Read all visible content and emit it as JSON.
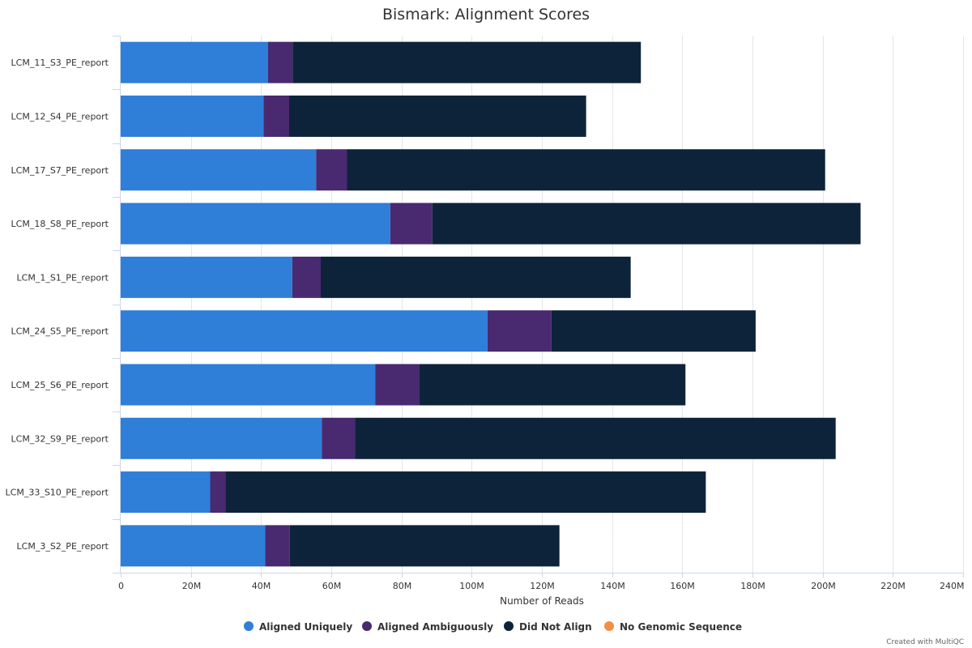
{
  "chart_data": {
    "type": "bar",
    "orientation": "horizontal",
    "stacked": true,
    "title": "Bismark: Alignment Scores",
    "xlabel": "Number of Reads",
    "ylabel": "",
    "xlim": [
      0,
      240000000
    ],
    "x_ticks": [
      "0",
      "20M",
      "40M",
      "60M",
      "80M",
      "100M",
      "120M",
      "140M",
      "160M",
      "180M",
      "200M",
      "220M",
      "240M"
    ],
    "x_tick_values": [
      0,
      20000000,
      40000000,
      60000000,
      80000000,
      100000000,
      120000000,
      140000000,
      160000000,
      180000000,
      200000000,
      220000000,
      240000000
    ],
    "grid": true,
    "legend_position": "bottom",
    "categories": [
      "LCM_11_S3_PE_report",
      "LCM_12_S4_PE_report",
      "LCM_17_S7_PE_report",
      "LCM_18_S8_PE_report",
      "LCM_1_S1_PE_report",
      "LCM_24_S5_PE_report",
      "LCM_25_S6_PE_report",
      "LCM_32_S9_PE_report",
      "LCM_33_S10_PE_report",
      "LCM_3_S2_PE_report"
    ],
    "series": [
      {
        "name": "Aligned Uniquely",
        "color": "#2f7ed8",
        "values": [
          42000000,
          40700000,
          55700000,
          76800000,
          48900000,
          104500000,
          72500000,
          57300000,
          25500000,
          41200000
        ]
      },
      {
        "name": "Aligned Ambiguously",
        "color": "#492970",
        "values": [
          7000000,
          7300000,
          8800000,
          12000000,
          8100000,
          18200000,
          12500000,
          9500000,
          4300000,
          7000000
        ]
      },
      {
        "name": "Did Not Align",
        "color": "#0d233a",
        "values": [
          99200000,
          84600000,
          136200000,
          122000000,
          88300000,
          58200000,
          75900000,
          136900000,
          136900000,
          76800000
        ]
      },
      {
        "name": "No Genomic Sequence",
        "color": "#f28f43",
        "values": [
          0,
          0,
          0,
          0,
          0,
          0,
          0,
          0,
          0,
          0
        ]
      }
    ]
  },
  "credits": "Created with MultiQC"
}
